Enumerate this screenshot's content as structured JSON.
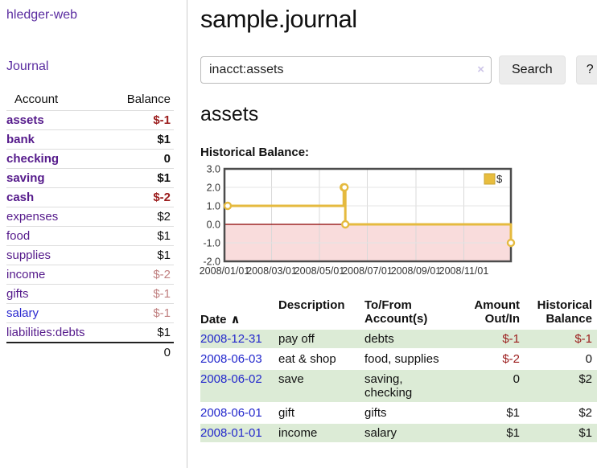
{
  "colors": {
    "link_purple": "#5a2ca0",
    "link_blue": "#2a28cf",
    "negative_strong": "#9b1c1c",
    "negative_faded": "#c08080",
    "row_stripe_green": "#dcebd6",
    "chart_line_gold": "#e5ba3f",
    "chart_negative_fill": "#f9dcdc",
    "chart_zero_line": "#8b0000"
  },
  "sidebar": {
    "app_title": "hledger-web",
    "journal_link": "Journal",
    "accounts_table": {
      "headers": {
        "account": "Account",
        "balance": "Balance"
      },
      "rows": [
        {
          "name": "assets",
          "balance": "$-1",
          "level": 1,
          "bold": true,
          "value_style": "val-neg-strong"
        },
        {
          "name": "bank",
          "balance": "$1",
          "level": 2,
          "bold": true,
          "value_style": "val-strong"
        },
        {
          "name": "checking",
          "balance": "0",
          "level": 3,
          "bold": true,
          "value_style": "val-strong"
        },
        {
          "name": "saving",
          "balance": "$1",
          "level": 3,
          "bold": true,
          "value_style": "val-strong"
        },
        {
          "name": "cash",
          "balance": "$-2",
          "level": 2,
          "bold": true,
          "value_style": "val-neg-strong"
        },
        {
          "name": "expenses",
          "balance": "$2",
          "level": 1,
          "bold": false,
          "value_style": "val-normal"
        },
        {
          "name": "food",
          "balance": "$1",
          "level": 2,
          "bold": false,
          "value_style": "val-normal"
        },
        {
          "name": "supplies",
          "balance": "$1",
          "level": 2,
          "bold": false,
          "value_style": "val-normal"
        },
        {
          "name": "income",
          "balance": "$-2",
          "level": 1,
          "bold": false,
          "value_style": "val-neg-faded"
        },
        {
          "name": "gifts",
          "balance": "$-1",
          "level": 2,
          "bold": false,
          "value_style": "val-neg-faded"
        },
        {
          "name": "salary",
          "balance": "$-1",
          "level": 2,
          "bold": false,
          "value_style": "val-neg-faded",
          "link_unvisited": true
        },
        {
          "name": "liabilities:debts",
          "balance": "$1",
          "level": 1,
          "bold": false,
          "value_style": "val-normal"
        }
      ],
      "total": "0"
    }
  },
  "main": {
    "title": "sample.journal",
    "search": {
      "value": "inacct:assets",
      "clear_icon": "×",
      "button_label": "Search",
      "help_label": "?"
    },
    "account_heading": "assets",
    "chart_label": "Historical Balance:"
  },
  "chart_data": {
    "type": "line",
    "title": "Historical Balance",
    "step": true,
    "series": [
      {
        "name": "$",
        "points": [
          {
            "date": "2008-01-01",
            "value": 1
          },
          {
            "date": "2008-06-01",
            "value": 2
          },
          {
            "date": "2008-06-02",
            "value": 2
          },
          {
            "date": "2008-06-03",
            "value": 0
          },
          {
            "date": "2008-12-31",
            "value": -1
          }
        ]
      }
    ],
    "ylim": [
      -2,
      3
    ],
    "yticks": [
      3.0,
      2.0,
      1.0,
      0.0,
      -1.0,
      -2.0
    ],
    "xticks": [
      "2008/01/01",
      "2008/03/01",
      "2008/05/01",
      "2008/07/01",
      "2008/09/01",
      "2008/11/01"
    ],
    "x_range_days": [
      0,
      365
    ],
    "legend": {
      "label": "$",
      "position": "top-right"
    },
    "grid": true,
    "negative_region_shaded": true
  },
  "register_table": {
    "headers": {
      "date": "Date",
      "sort_indicator": "∧",
      "description": "Description",
      "to_from": "To/From\nAccount(s)",
      "amount": "Amount\nOut/In",
      "balance": "Historical\nBalance"
    },
    "rows": [
      {
        "date": "2008-12-31",
        "description": "pay off",
        "to_from": "debts",
        "amount": "$-1",
        "balance": "$-1",
        "amount_negative": true,
        "balance_negative": true,
        "shaded": true
      },
      {
        "date": "2008-06-03",
        "description": "eat & shop",
        "to_from": "food, supplies",
        "amount": "$-2",
        "balance": "0",
        "amount_negative": true,
        "balance_negative": false,
        "shaded": false
      },
      {
        "date": "2008-06-02",
        "description": "save",
        "to_from": "saving,\nchecking",
        "amount": "0",
        "balance": "$2",
        "amount_negative": false,
        "balance_negative": false,
        "shaded": true
      },
      {
        "date": "2008-06-01",
        "description": "gift",
        "to_from": "gifts",
        "amount": "$1",
        "balance": "$2",
        "amount_negative": false,
        "balance_negative": false,
        "shaded": false
      },
      {
        "date": "2008-01-01",
        "description": "income",
        "to_from": "salary",
        "amount": "$1",
        "balance": "$1",
        "amount_negative": false,
        "balance_negative": false,
        "shaded": true
      }
    ]
  }
}
